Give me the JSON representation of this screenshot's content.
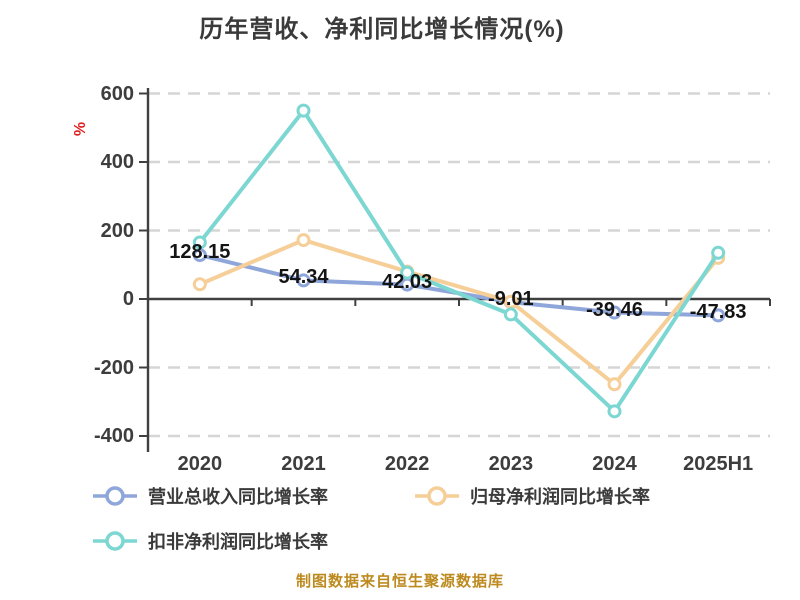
{
  "title": "历年营收、净利同比增长情况(%)",
  "axis": {
    "y_unit": "%"
  },
  "footer": {
    "source": "制图数据来自恒生聚源数据库"
  },
  "colors": {
    "title": "#3a3a3a",
    "text": "#3d3d3d",
    "dlabel": "#141414",
    "grid": "#d5d5d5",
    "axis": "#404040",
    "footer": "#bd8a1f",
    "unit": "#e02020"
  },
  "chart_data": {
    "type": "line",
    "title": "历年营收、净利同比增长情况(%)",
    "categories": [
      "2020",
      "2021",
      "2022",
      "2023",
      "2024",
      "2025H1"
    ],
    "series": [
      {
        "name": "营业总收入同比增长率",
        "color": "#8ea6d9",
        "values": [
          128.15,
          54.34,
          42.03,
          -9.01,
          -39.46,
          -47.83
        ],
        "point_labels": [
          "128.15",
          "54.34",
          "42.03",
          "-9.01",
          "-39.46",
          "-47.83"
        ]
      },
      {
        "name": "归母净利润同比增长率",
        "color": "#f6ce98",
        "values": [
          43,
          172,
          80,
          -8,
          -249,
          120
        ]
      },
      {
        "name": "扣非净利润同比增长率",
        "color": "#7cd7d2",
        "values": [
          165,
          550,
          77,
          -45,
          -328,
          135
        ]
      }
    ],
    "xlabel": "",
    "ylabel": "%",
    "ylim": [
      -400,
      600
    ],
    "y_ticks": [
      600,
      400,
      200,
      0,
      -200,
      -400
    ],
    "grid": "horizontal dashed",
    "legend_position": "bottom"
  }
}
